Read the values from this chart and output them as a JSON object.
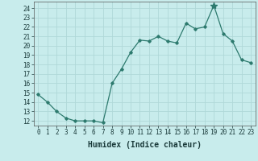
{
  "x": [
    0,
    1,
    2,
    3,
    4,
    5,
    6,
    7,
    8,
    9,
    10,
    11,
    12,
    13,
    14,
    15,
    16,
    17,
    18,
    19,
    20,
    21,
    22,
    23
  ],
  "y": [
    14.8,
    14.0,
    13.0,
    12.3,
    12.0,
    12.0,
    12.0,
    11.8,
    16.0,
    17.5,
    19.3,
    20.6,
    20.5,
    21.0,
    20.5,
    20.3,
    22.4,
    21.8,
    22.0,
    24.3,
    21.3,
    20.5,
    18.5,
    18.2
  ],
  "xlabel": "Humidex (Indice chaleur)",
  "ylim": [
    11.5,
    24.7
  ],
  "xlim": [
    -0.5,
    23.5
  ],
  "yticks": [
    12,
    13,
    14,
    15,
    16,
    17,
    18,
    19,
    20,
    21,
    22,
    23,
    24
  ],
  "xticks": [
    0,
    1,
    2,
    3,
    4,
    5,
    6,
    7,
    8,
    9,
    10,
    11,
    12,
    13,
    14,
    15,
    16,
    17,
    18,
    19,
    20,
    21,
    22,
    23
  ],
  "line_color": "#2d7a6e",
  "bg_color": "#c8ecec",
  "grid_color": "#b0d8d8",
  "tick_fontsize": 5.5,
  "xlabel_fontsize": 7,
  "star_index": 19
}
